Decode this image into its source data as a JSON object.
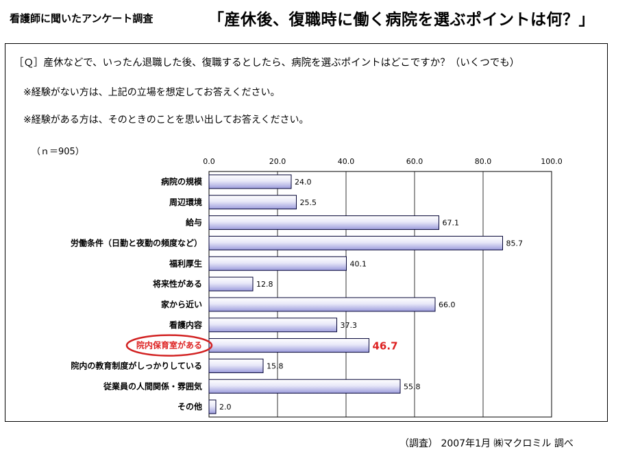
{
  "header": {
    "left_title": "看護師に聞いたアンケート調査",
    "right_title": "「産休後、復職時に働く病院を選ぶポイントは何？」"
  },
  "question": "［Ｑ］産休などで、いったん退職した後、復職するとしたら、病院を選ぶポイントはどこですか？（いくつでも）",
  "notes": [
    "※経験がない方は、上記の立場を想定してお答えください。",
    "※経験がある方は、そのときのことを思い出してお答えください。"
  ],
  "sample_size": "（ｎ＝905）",
  "footer": "（調査）  2007年1月  ㈱マクロミル 調べ",
  "colors": {
    "bar_fill_top": "#ffffff",
    "bar_fill_bottom": "#9c9cdc",
    "bar_stroke": "#000033",
    "highlight": "#d22222"
  },
  "chart_data": {
    "type": "bar",
    "orientation": "horizontal",
    "categories": [
      "病院の規模",
      "周辺環境",
      "給与",
      "労働条件（日勤と夜勤の頻度など）",
      "福利厚生",
      "将来性がある",
      "家から近い",
      "看護内容",
      "院内保育室がある",
      "院内の教育制度がしっかりしている",
      "従業員の人間関係・雰囲気",
      "その他"
    ],
    "values": [
      24.0,
      25.5,
      67.1,
      85.7,
      40.1,
      12.8,
      66.0,
      37.3,
      46.7,
      15.8,
      55.8,
      2.0
    ],
    "value_labels": [
      "24.0",
      "25.5",
      "67.1",
      "85.7",
      "40.1",
      "12.8",
      "66.0",
      "37.3",
      "46.7",
      "15.8",
      "55.8",
      "2.0"
    ],
    "tick_labels": [
      "0.0",
      "20.0",
      "40.0",
      "60.0",
      "80.0",
      "100.0"
    ],
    "xlim": [
      0,
      100
    ],
    "highlight_category": "院内保育室がある",
    "grid": true,
    "legend": "none"
  }
}
